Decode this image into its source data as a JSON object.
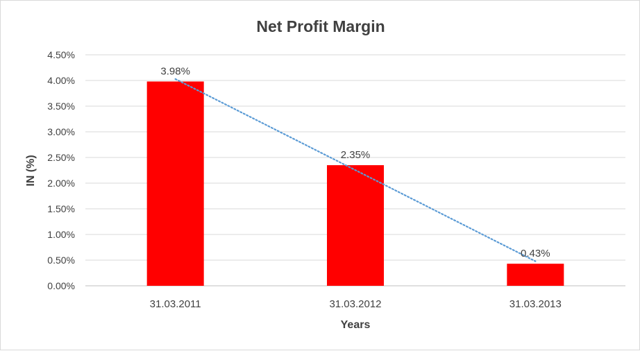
{
  "chart_data": {
    "type": "bar",
    "title": "Net Profit Margin",
    "xlabel": "Years",
    "ylabel": "IN (%)",
    "categories": [
      "31.03.2011",
      "31.03.2012",
      "31.03.2013"
    ],
    "values": [
      3.98,
      2.35,
      0.43
    ],
    "data_labels": [
      "3.98%",
      "2.35%",
      "0.43%"
    ],
    "ylim": [
      0,
      4.5
    ],
    "yticks": [
      0,
      0.5,
      1,
      1.5,
      2,
      2.5,
      3,
      3.5,
      4,
      4.5
    ],
    "ytick_labels": [
      "0.00%",
      "0.50%",
      "1.00%",
      "1.50%",
      "2.00%",
      "2.50%",
      "3.00%",
      "3.50%",
      "4.00%",
      "4.50%"
    ],
    "grid": true,
    "trendline": {
      "type": "linear",
      "style": "dotted"
    },
    "colors": {
      "bar": "#FF0000",
      "trendline": "#5B9BD5",
      "grid": "#D9D9D9",
      "text": "#404040"
    }
  }
}
